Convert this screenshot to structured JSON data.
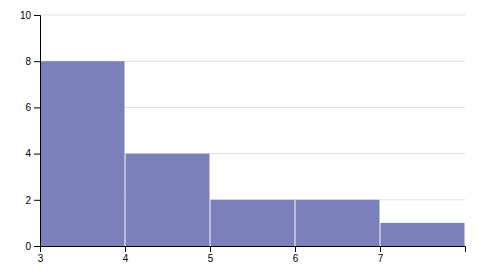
{
  "chart_data": {
    "type": "histogram",
    "bins": [
      3,
      4,
      5,
      6,
      7,
      8
    ],
    "values": [
      8,
      4,
      2,
      2,
      1
    ],
    "color": "#7b7fba",
    "xlim": [
      3,
      8
    ],
    "ylim": [
      0,
      10
    ],
    "xticks": [
      3,
      4,
      5,
      6,
      7
    ],
    "yticks": [
      0,
      2,
      4,
      6,
      8,
      10
    ],
    "grid": true
  }
}
